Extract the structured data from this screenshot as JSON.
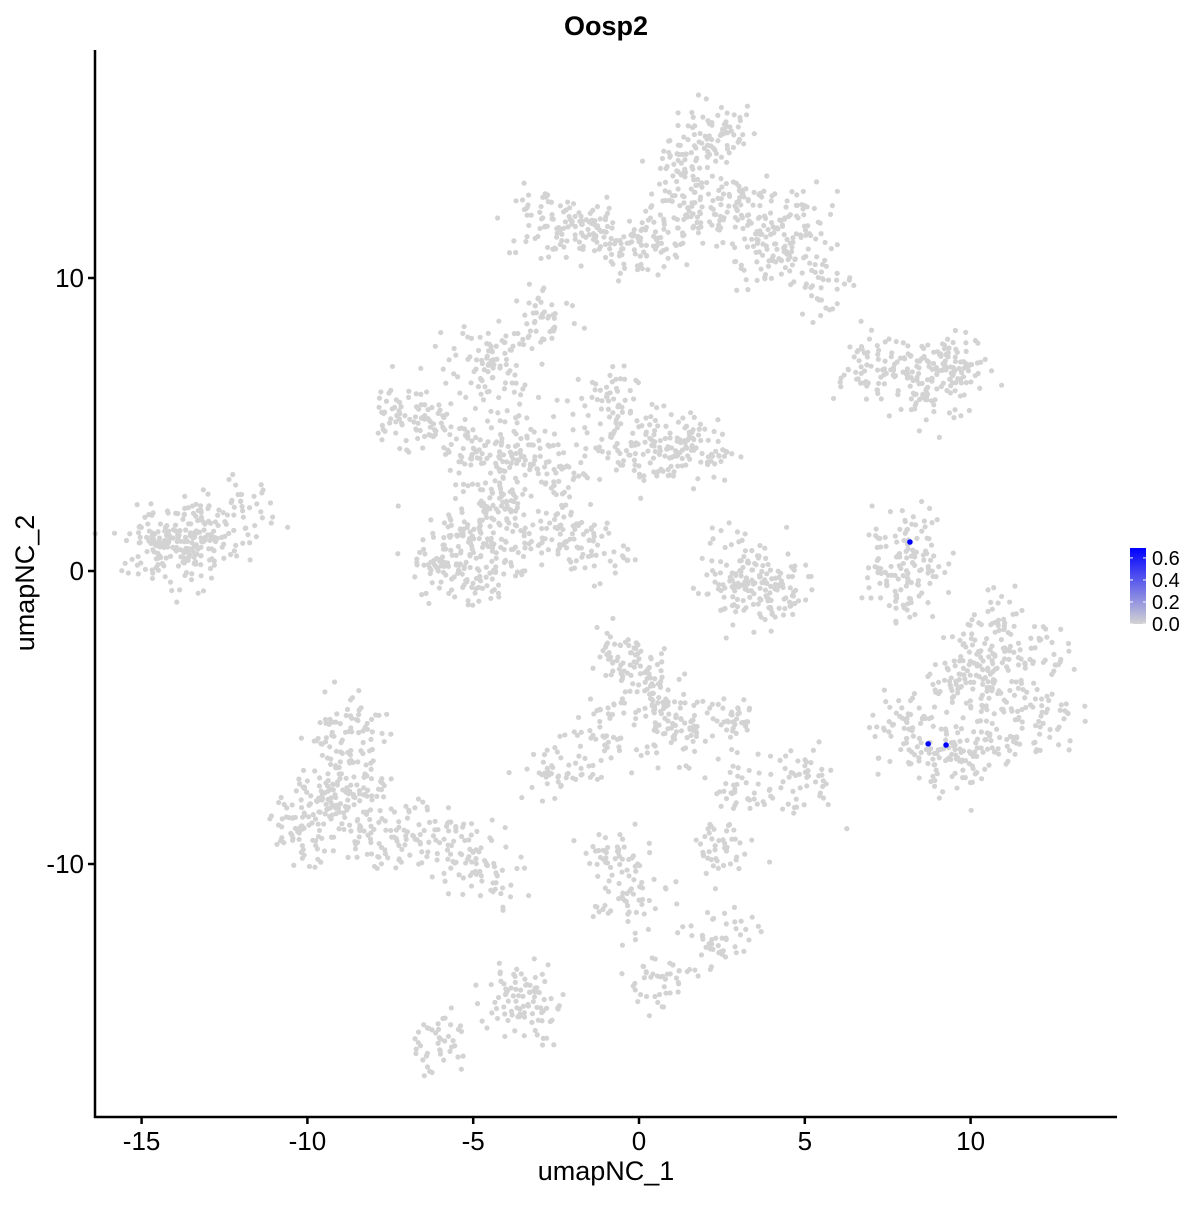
{
  "chart_data": {
    "type": "scatter",
    "title": "Oosp2",
    "xlabel": "umapNC_1",
    "ylabel": "umapNC_2",
    "xlim": [
      -16.5,
      14.5
    ],
    "ylim": [
      -18.5,
      18.5
    ],
    "x_ticks": [
      -15,
      -10,
      -5,
      0,
      5,
      10
    ],
    "x_tick_labels": [
      "-15",
      "-10",
      "-5",
      "0",
      "5",
      "10"
    ],
    "y_ticks": [
      -10,
      0,
      10
    ],
    "y_tick_labels": [
      "-10",
      "0",
      "10"
    ],
    "grid": false,
    "legend": {
      "placement": "right",
      "type": "colorbar",
      "low_color": "#d3d3d3",
      "high_color": "#0000ff",
      "range": [
        0,
        0.69
      ],
      "tick_values": [
        0,
        0.2,
        0.4,
        0.6
      ],
      "tick_labels": [
        "0.0",
        "0.2",
        "0.4",
        "0.6"
      ]
    },
    "background_points_color": "#d3d3d3",
    "background_points_expression": 0,
    "background_points_approx": [
      [
        1.84,
        14.37
      ],
      [
        1.24,
        13.3
      ],
      [
        2.44,
        15.05
      ],
      [
        3.05,
        12.66
      ],
      [
        3.65,
        11.6
      ],
      [
        4.86,
        12.0
      ],
      [
        5.46,
        9.93
      ],
      [
        4.04,
        10.6
      ],
      [
        1.84,
        12.0
      ],
      [
        0.63,
        11.3
      ],
      [
        0.03,
        11.1
      ],
      [
        -2.99,
        12.0
      ],
      [
        -2.08,
        11.64
      ],
      [
        -1.18,
        11.47
      ],
      [
        -2.82,
        8.63
      ],
      [
        -4.54,
        7.54
      ],
      [
        6.66,
        6.93
      ],
      [
        7.87,
        6.86
      ],
      [
        9.08,
        7.03
      ],
      [
        9.68,
        6.86
      ],
      [
        8.78,
        6.0
      ],
      [
        -14.75,
        1.06
      ],
      [
        -13.84,
        1.06
      ],
      [
        -12.94,
        1.4
      ],
      [
        -12.03,
        2.08
      ],
      [
        -13.24,
        0.55
      ],
      [
        -14.3,
        0.6
      ],
      [
        -7.21,
        5.49
      ],
      [
        -6.3,
        4.81
      ],
      [
        -5.1,
        4.13
      ],
      [
        -4.19,
        3.45
      ],
      [
        -3.59,
        4.47
      ],
      [
        -2.38,
        3.45
      ],
      [
        -1.18,
        5.84
      ],
      [
        -0.57,
        4.47
      ],
      [
        1.24,
        4.47
      ],
      [
        1.84,
        4.13
      ],
      [
        0.33,
        3.79
      ],
      [
        -4.19,
        2.42
      ],
      [
        -4.49,
        1.4
      ],
      [
        -5.4,
        1.06
      ],
      [
        -6.0,
        0.38
      ],
      [
        -5.1,
        -0.31
      ],
      [
        -3.89,
        0.72
      ],
      [
        -4.19,
        6.52
      ],
      [
        -2.38,
        1.4
      ],
      [
        -1.48,
        0.72
      ],
      [
        3.05,
        0.38
      ],
      [
        2.74,
        -0.65
      ],
      [
        3.65,
        -0.82
      ],
      [
        4.25,
        -0.48
      ],
      [
        8.17,
        1.06
      ],
      [
        8.02,
        0.2
      ],
      [
        7.93,
        -0.65
      ],
      [
        11.04,
        -4.06
      ],
      [
        10.28,
        -3.04
      ],
      [
        11.79,
        -2.7
      ],
      [
        12.09,
        -5.09
      ],
      [
        10.58,
        -5.77
      ],
      [
        9.68,
        -6.45
      ],
      [
        8.78,
        -6.45
      ],
      [
        7.96,
        -5.09
      ],
      [
        10.89,
        -2.01
      ],
      [
        9.68,
        -4.06
      ],
      [
        -0.57,
        -3.04
      ],
      [
        0.03,
        -3.72
      ],
      [
        0.63,
        -4.4
      ],
      [
        -1.18,
        -5.77
      ],
      [
        -2.38,
        -6.79
      ],
      [
        1.24,
        -5.43
      ],
      [
        2.44,
        -9.52
      ],
      [
        2.44,
        -12.59
      ],
      [
        4.86,
        -7.13
      ],
      [
        3.35,
        -7.47
      ],
      [
        2.59,
        -5.09
      ],
      [
        -0.27,
        -11.23
      ],
      [
        -0.72,
        -9.86
      ],
      [
        -9.02,
        -6.45
      ],
      [
        -8.41,
        -7.82
      ],
      [
        -9.62,
        -8.5
      ],
      [
        -10.22,
        -8.84
      ],
      [
        -7.81,
        -9.18
      ],
      [
        -6.6,
        -8.84
      ],
      [
        -5.4,
        -9.52
      ],
      [
        -4.49,
        -10.2
      ],
      [
        -8.72,
        -5.09
      ],
      [
        -9.32,
        -7.47
      ],
      [
        -3.59,
        -14.3
      ],
      [
        -3.44,
        -14.98
      ],
      [
        0.57,
        -14.03
      ],
      [
        -6.06,
        -16.1
      ]
    ],
    "expressing_points": [
      {
        "x": 8.17,
        "y": 0.99,
        "value": 0.69
      },
      {
        "x": 8.72,
        "y": -5.9,
        "value": 0.69
      },
      {
        "x": 9.26,
        "y": -5.94,
        "value": 0.69
      }
    ]
  }
}
